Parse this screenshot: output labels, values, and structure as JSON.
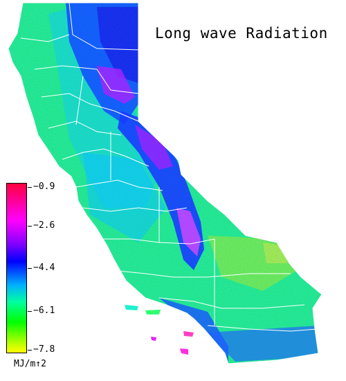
{
  "map": {
    "title": "Long wave Radiation",
    "legend": {
      "unit": "MJ/m↑2",
      "ticks": [
        "−0.9",
        "−2.6",
        "−4.4",
        "−6.1",
        "−7.8"
      ],
      "range": [
        -7.8,
        -0.9
      ]
    },
    "colors": {
      "high": "#ff0040",
      "upper": "#ff00ff",
      "mid": "#0000ff",
      "lower": "#00ffa0",
      "low": "#ffff00",
      "border": "#ffffff",
      "background": "#ffffff"
    }
  }
}
